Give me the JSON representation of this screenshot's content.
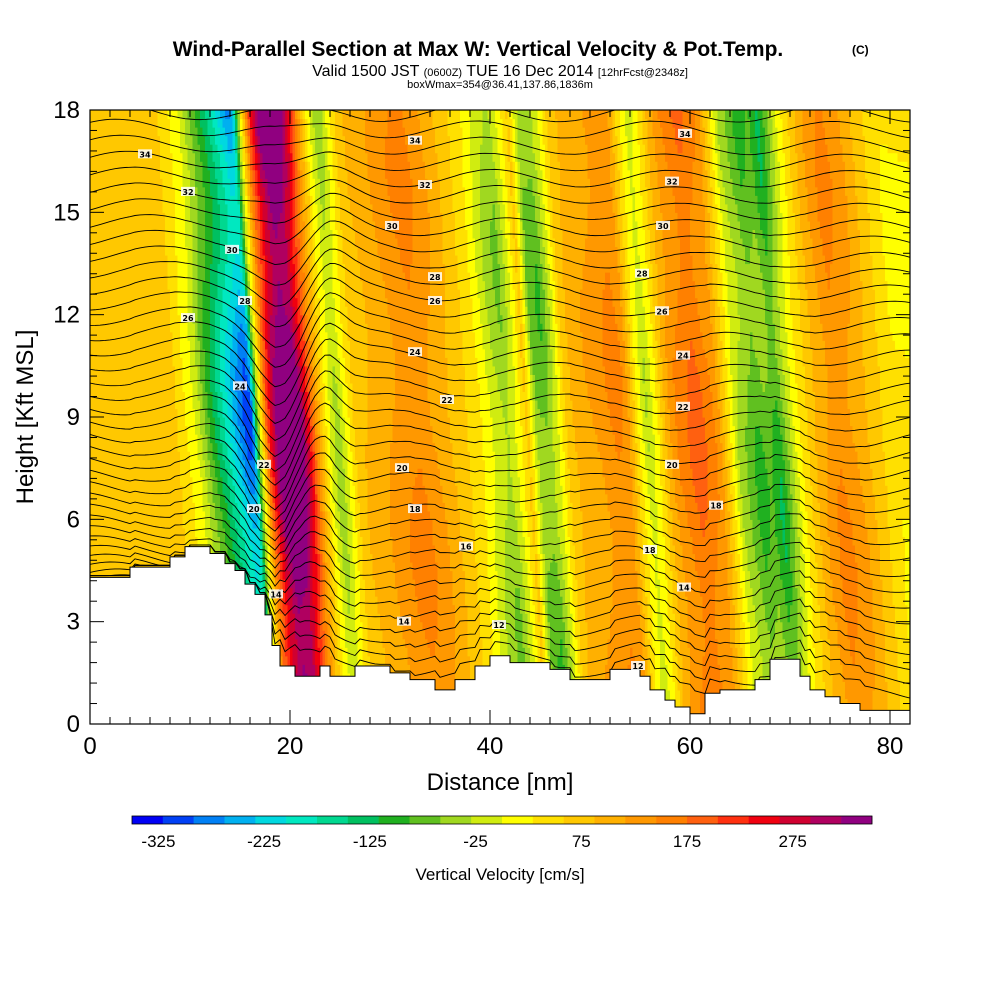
{
  "chart_data": {
    "type": "heatmap",
    "title": "Wind-Parallel Section at Max W: Vertical Velocity & Pot.Temp.",
    "title_suffix": "(C)",
    "subtitle_parts": [
      "Valid 1500 JST ",
      "(0600Z)",
      " TUE 16 Dec 2014 ",
      "[12hrFcst@2348z]"
    ],
    "info_line": "boxWmax=354@36.41,137.86,1836m",
    "xlabel": "Distance [nm]",
    "ylabel": "Height [Kft MSL]",
    "xlim": [
      0,
      82
    ],
    "ylim": [
      0,
      18
    ],
    "x_ticks": [
      0,
      20,
      40,
      60,
      80
    ],
    "y_ticks": [
      0,
      3,
      6,
      9,
      12,
      15,
      18
    ],
    "colorbar": {
      "title": "Vertical Velocity [cm/s]",
      "min": -350,
      "max": 350,
      "step": 25,
      "labels": [
        -325,
        -225,
        -125,
        -25,
        75,
        175,
        275
      ],
      "colors": [
        "#0000f5",
        "#0040f5",
        "#0080f5",
        "#00b0f0",
        "#00d8e0",
        "#00e8c0",
        "#00d890",
        "#00c060",
        "#20b020",
        "#60c020",
        "#a0d820",
        "#d0ec10",
        "#ffff00",
        "#ffe000",
        "#ffc800",
        "#ffb000",
        "#ff9800",
        "#ff8000",
        "#ff6010",
        "#ff3010",
        "#f00010",
        "#d00030",
        "#b00060",
        "#900080"
      ]
    },
    "velocity_profile": {
      "x": [
        0,
        4,
        8,
        10,
        12,
        13,
        14,
        15,
        16,
        17,
        17.5,
        18,
        19,
        20,
        21,
        22,
        23,
        24,
        25,
        26,
        27,
        28,
        30,
        32,
        34,
        36,
        38,
        40,
        42,
        43,
        44,
        45,
        46,
        47,
        48,
        49,
        50,
        52,
        54,
        55,
        56,
        57,
        58,
        59,
        60,
        61,
        62,
        64,
        66,
        68,
        69,
        70,
        71,
        72,
        74,
        76,
        78,
        80,
        82
      ],
      "w": [
        0,
        10,
        20,
        0,
        -60,
        -120,
        -170,
        -220,
        -270,
        -320,
        -300,
        -120,
        120,
        250,
        320,
        290,
        180,
        60,
        -40,
        -100,
        -40,
        20,
        40,
        70,
        90,
        60,
        20,
        -20,
        -90,
        -110,
        -60,
        10,
        -120,
        -130,
        -70,
        10,
        40,
        60,
        90,
        70,
        -20,
        -80,
        -30,
        40,
        80,
        100,
        120,
        70,
        -80,
        -140,
        -120,
        -160,
        -100,
        -40,
        40,
        90,
        60,
        10,
        -30
      ]
    },
    "terrain": {
      "x": [
        0,
        4,
        4,
        8,
        8,
        9.5,
        9.5,
        12,
        12,
        13.5,
        13.5,
        14.5,
        14.5,
        15.5,
        15.5,
        16.5,
        16.5,
        17.5,
        17.5,
        18.2,
        18.2,
        19,
        19,
        20.5,
        20.5,
        23,
        23,
        24,
        24,
        26.5,
        26.5,
        30,
        30,
        32,
        32,
        34.5,
        34.5,
        36.5,
        36.5,
        38.5,
        38.5,
        40,
        40,
        42,
        42,
        46,
        46,
        48,
        48,
        52,
        52,
        55,
        55,
        56,
        56,
        57.5,
        57.5,
        58.5,
        58.5,
        60,
        60,
        61.5,
        61.5,
        63,
        63,
        66.5,
        66.5,
        68,
        68,
        71,
        71,
        72,
        72,
        73.5,
        73.5,
        75,
        75,
        77,
        77,
        82
      ],
      "h": [
        4.3,
        4.3,
        4.6,
        4.6,
        4.9,
        4.9,
        5.2,
        5.2,
        5.0,
        5.0,
        4.7,
        4.7,
        4.5,
        4.5,
        4.1,
        4.1,
        3.8,
        3.8,
        3.2,
        3.2,
        2.3,
        2.3,
        1.7,
        1.7,
        1.4,
        1.4,
        1.7,
        1.7,
        1.4,
        1.4,
        1.7,
        1.7,
        1.5,
        1.5,
        1.3,
        1.3,
        1.0,
        1.0,
        1.3,
        1.3,
        1.7,
        1.7,
        2.0,
        2.0,
        1.8,
        1.8,
        1.6,
        1.6,
        1.3,
        1.3,
        1.6,
        1.6,
        1.4,
        1.4,
        1.0,
        1.0,
        0.7,
        0.7,
        0.5,
        0.5,
        0.3,
        0.3,
        0.9,
        0.9,
        1.0,
        1.0,
        1.3,
        1.3,
        1.9,
        1.9,
        1.4,
        1.4,
        1.0,
        1.0,
        0.8,
        0.8,
        0.6,
        0.6,
        0.4,
        0.4
      ]
    },
    "theta_contours": {
      "label_values": [
        12,
        14,
        16,
        18,
        20,
        22,
        24,
        26,
        28,
        30,
        32,
        34
      ],
      "labels": [
        {
          "text": "34",
          "x": 5.5,
          "y": 16.7
        },
        {
          "text": "34",
          "x": 32.5,
          "y": 17.1
        },
        {
          "text": "34",
          "x": 59.5,
          "y": 17.3
        },
        {
          "text": "32",
          "x": 9.8,
          "y": 15.6
        },
        {
          "text": "32",
          "x": 33.5,
          "y": 15.8
        },
        {
          "text": "32",
          "x": 58.2,
          "y": 15.9
        },
        {
          "text": "30",
          "x": 14.2,
          "y": 13.9
        },
        {
          "text": "30",
          "x": 30.2,
          "y": 14.6
        },
        {
          "text": "30",
          "x": 57.3,
          "y": 14.6
        },
        {
          "text": "28",
          "x": 15.5,
          "y": 12.4
        },
        {
          "text": "28",
          "x": 34.5,
          "y": 13.1
        },
        {
          "text": "28",
          "x": 55.2,
          "y": 13.2
        },
        {
          "text": "26",
          "x": 9.8,
          "y": 11.9
        },
        {
          "text": "26",
          "x": 34.5,
          "y": 12.4
        },
        {
          "text": "26",
          "x": 57.2,
          "y": 12.1
        },
        {
          "text": "24",
          "x": 15.0,
          "y": 9.9
        },
        {
          "text": "24",
          "x": 32.5,
          "y": 10.9
        },
        {
          "text": "24",
          "x": 59.3,
          "y": 10.8
        },
        {
          "text": "22",
          "x": 17.4,
          "y": 7.6
        },
        {
          "text": "22",
          "x": 35.7,
          "y": 9.5
        },
        {
          "text": "22",
          "x": 59.3,
          "y": 9.3
        },
        {
          "text": "20",
          "x": 16.4,
          "y": 6.3
        },
        {
          "text": "20",
          "x": 31.2,
          "y": 7.5
        },
        {
          "text": "20",
          "x": 58.2,
          "y": 7.6
        },
        {
          "text": "18",
          "x": 32.5,
          "y": 6.3
        },
        {
          "text": "18",
          "x": 56.0,
          "y": 5.1
        },
        {
          "text": "18",
          "x": 62.6,
          "y": 6.4
        },
        {
          "text": "16",
          "x": 37.6,
          "y": 5.2
        },
        {
          "text": "14",
          "x": 18.6,
          "y": 3.8
        },
        {
          "text": "14",
          "x": 31.4,
          "y": 3.0
        },
        {
          "text": "14",
          "x": 59.4,
          "y": 4.0
        },
        {
          "text": "12",
          "x": 40.9,
          "y": 2.9
        },
        {
          "text": "12",
          "x": 54.8,
          "y": 1.7
        }
      ]
    }
  }
}
